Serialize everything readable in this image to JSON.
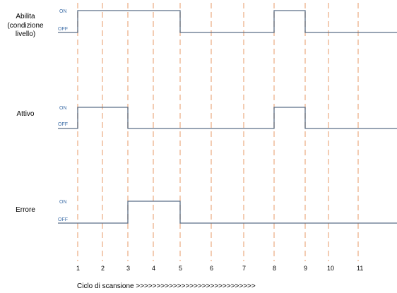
{
  "signals": [
    {
      "name_lines": [
        "Abilita",
        "(condizione",
        "livello)"
      ],
      "on_label": "ON",
      "off_label": "OFF",
      "high_intervals": [
        [
          1,
          5
        ],
        [
          8,
          9
        ]
      ]
    },
    {
      "name_lines": [
        "Attivo"
      ],
      "on_label": "ON",
      "off_label": "OFF",
      "high_intervals": [
        [
          1,
          3
        ],
        [
          8,
          9
        ]
      ]
    },
    {
      "name_lines": [
        "Errore"
      ],
      "on_label": "ON",
      "off_label": "OFF",
      "high_intervals": [
        [
          3,
          5
        ]
      ]
    }
  ],
  "cycles": [
    "1",
    "2",
    "3",
    "4",
    "5",
    "6",
    "7",
    "8",
    "9",
    "10",
    "11"
  ],
  "footer": "Ciclo di scansione >>>>>>>>>>>>>>>>>>>>>>>>>>>>>",
  "colors": {
    "waveform": "#5a6e86",
    "guide": "#f0c0a0",
    "state_text": "#3f6fa8"
  }
}
